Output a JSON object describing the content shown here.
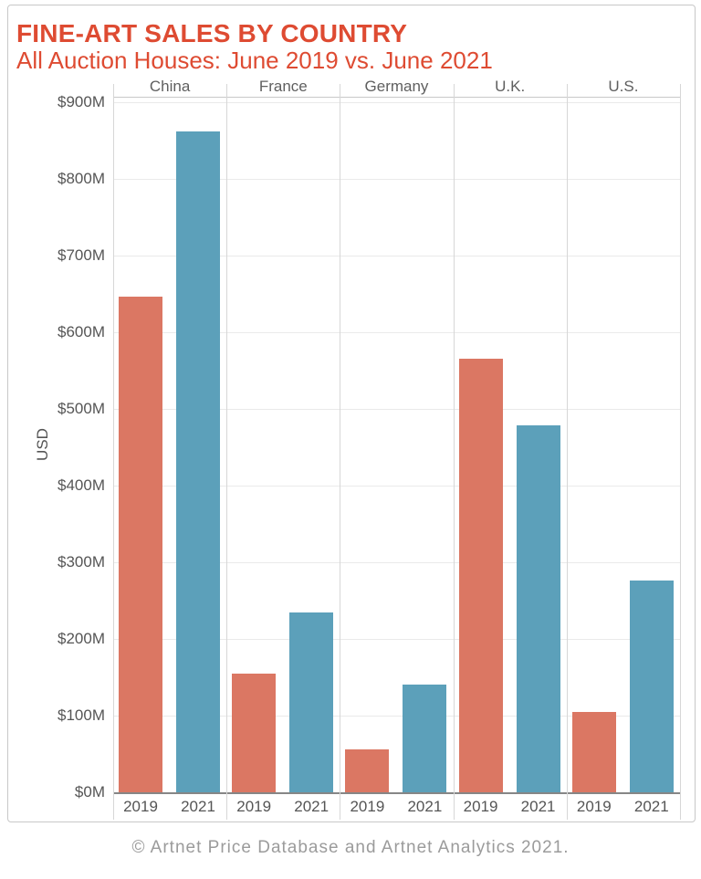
{
  "header": {
    "title": "FINE-ART SALES BY COUNTRY",
    "subtitle": "All Auction Houses: June 2019 vs. June 2021"
  },
  "footer": {
    "copyright": "© Artnet Price Database and Artnet Analytics 2021."
  },
  "colors": {
    "title_accent": "#de4b32",
    "bar_2019": "#db7763",
    "bar_2021": "#5ca0ba",
    "axis_text": "#555555",
    "gridline": "#eaeaea"
  },
  "chart_data": {
    "type": "bar",
    "title": "FINE-ART SALES BY COUNTRY",
    "subtitle": "All Auction Houses: June 2019 vs. June 2021",
    "unit": "USD millions",
    "ylabel": "USD",
    "xlabel": "",
    "categories": [
      "China",
      "France",
      "Germany",
      "U.K.",
      "U.S."
    ],
    "x_tick_labels": [
      "2019",
      "2021"
    ],
    "series": [
      {
        "name": "2019",
        "color": "#db7763",
        "values": [
          646,
          155,
          56,
          565,
          105
        ]
      },
      {
        "name": "2021",
        "color": "#5ca0ba",
        "values": [
          862,
          235,
          140,
          478,
          276
        ]
      }
    ],
    "ylim": [
      0,
      900
    ],
    "ytick_step": 100,
    "ytick_labels": [
      "$0M",
      "$100M",
      "$200M",
      "$300M",
      "$400M",
      "$500M",
      "$600M",
      "$700M",
      "$800M",
      "$900M"
    ],
    "grid": true,
    "legend": "none"
  }
}
